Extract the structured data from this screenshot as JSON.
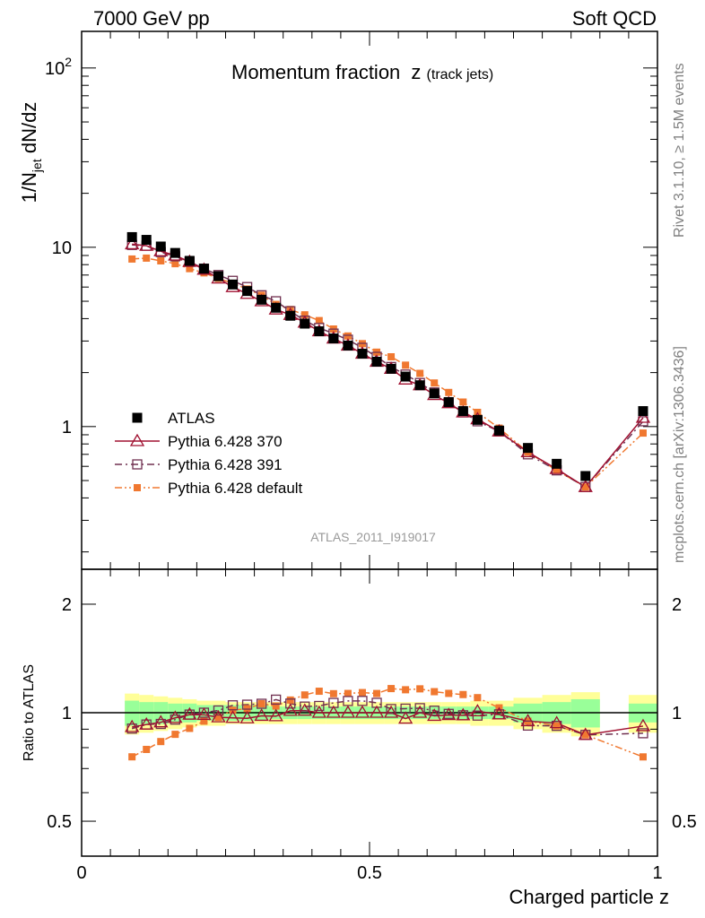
{
  "header": {
    "left": "7000 GeV pp",
    "right": "Soft QCD"
  },
  "side_labels": {
    "rivet": "Rivet 3.1.10, ≥ 1.5M events",
    "mcplots": "mcplots.cern.ch [arXiv:1306.3436]"
  },
  "analysis_id": "ATLAS_2011_I919017",
  "chart_data": {
    "type": "line",
    "title": "Momentum fraction",
    "title_var": "z",
    "title_sub": "(track jets)",
    "xlabel": "Charged particle z",
    "ylabel_main": {
      "pre": "1/N",
      "sub": "jet",
      "post": " dN/dz"
    },
    "ylabel_ratio": "Ratio to ATLAS",
    "xlim": [
      0,
      1.0
    ],
    "ylim_main": [
      0.16,
      160
    ],
    "ylim_ratio": [
      0.4,
      2.5
    ],
    "yscale": "log",
    "x_ticks": [
      "0",
      "0.5",
      "1"
    ],
    "y_ticks_main": [
      "1",
      "10",
      "10^2"
    ],
    "y_ticks_ratio": [
      "0.5",
      "1",
      "2"
    ],
    "legend_position": "bottom-left",
    "x": [
      0.0875,
      0.1125,
      0.1375,
      0.1625,
      0.1875,
      0.2125,
      0.2375,
      0.2625,
      0.2875,
      0.3125,
      0.3375,
      0.3625,
      0.3875,
      0.4125,
      0.4375,
      0.4625,
      0.4875,
      0.5125,
      0.5375,
      0.5625,
      0.5875,
      0.6125,
      0.6375,
      0.6625,
      0.6875,
      0.725,
      0.775,
      0.825,
      0.875,
      0.975
    ],
    "series": [
      {
        "name": "ATLAS",
        "color": "#000000",
        "marker": "filled-square",
        "values": [
          11.4,
          11.0,
          10.1,
          9.3,
          8.4,
          7.6,
          6.9,
          6.2,
          5.7,
          5.1,
          4.6,
          4.15,
          3.75,
          3.4,
          3.1,
          2.83,
          2.55,
          2.3,
          2.1,
          1.9,
          1.7,
          1.53,
          1.37,
          1.22,
          1.09,
          0.95,
          0.76,
          0.62,
          0.53,
          1.22
        ],
        "band_inner": [
          0.08,
          0.07,
          0.07,
          0.06,
          0.06,
          0.05,
          0.05,
          0.05,
          0.05,
          0.05,
          0.04,
          0.04,
          0.04,
          0.04,
          0.04,
          0.04,
          0.04,
          0.04,
          0.04,
          0.04,
          0.04,
          0.04,
          0.04,
          0.04,
          0.04,
          0.04,
          0.06,
          0.07,
          0.09,
          0.06
        ],
        "band_outer": [
          0.13,
          0.12,
          0.11,
          0.1,
          0.09,
          0.08,
          0.08,
          0.07,
          0.07,
          0.07,
          0.07,
          0.07,
          0.07,
          0.07,
          0.07,
          0.07,
          0.07,
          0.07,
          0.07,
          0.07,
          0.07,
          0.07,
          0.07,
          0.07,
          0.08,
          0.08,
          0.1,
          0.12,
          0.14,
          0.12
        ]
      },
      {
        "name": "Pythia 6.428 370",
        "color": "#a01030",
        "marker": "open-triangle",
        "line": "solid",
        "values": [
          10.4,
          10.2,
          9.5,
          9.0,
          8.3,
          7.5,
          6.7,
          6.0,
          5.5,
          5.0,
          4.5,
          4.2,
          3.8,
          3.4,
          3.1,
          2.83,
          2.55,
          2.3,
          2.1,
          1.83,
          1.7,
          1.5,
          1.35,
          1.2,
          1.1,
          0.94,
          0.72,
          0.58,
          0.46,
          1.12
        ]
      },
      {
        "name": "Pythia 6.428 391",
        "color": "#703050",
        "marker": "open-square",
        "line": "dash-dot",
        "values": [
          10.3,
          10.2,
          9.4,
          8.9,
          8.3,
          7.6,
          7.0,
          6.5,
          6.0,
          5.4,
          5.0,
          4.4,
          3.9,
          3.55,
          3.3,
          3.05,
          2.75,
          2.45,
          2.15,
          1.95,
          1.75,
          1.55,
          1.36,
          1.2,
          1.07,
          0.94,
          0.7,
          0.57,
          0.46,
          1.07
        ]
      },
      {
        "name": "Pythia 6.428 default",
        "color": "#f07830",
        "marker": "small-filled-square",
        "line": "dash-dot-dot",
        "values": [
          8.6,
          8.7,
          8.4,
          8.1,
          7.6,
          7.2,
          6.7,
          6.3,
          5.85,
          5.4,
          4.8,
          4.5,
          4.2,
          3.9,
          3.5,
          3.2,
          2.9,
          2.6,
          2.45,
          2.2,
          1.98,
          1.75,
          1.55,
          1.37,
          1.2,
          0.98,
          0.72,
          0.57,
          0.46,
          0.92
        ]
      }
    ]
  }
}
